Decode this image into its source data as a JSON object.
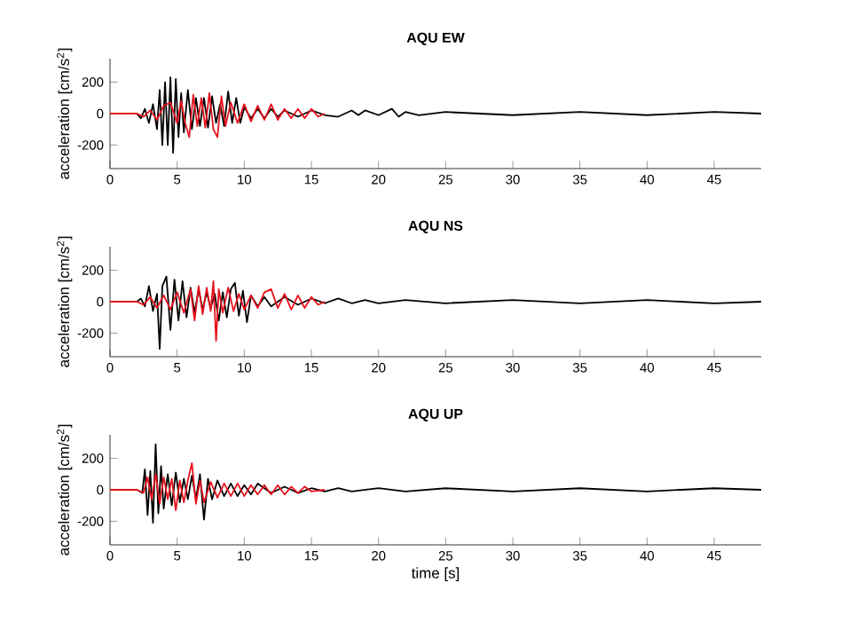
{
  "chart_data": [
    {
      "type": "line",
      "title": "AQU EW",
      "ylabel": "acceleration [cm/s$^{2}$]",
      "xlim": [
        0,
        48.5
      ],
      "ylim": [
        -350,
        350
      ],
      "xticks": [
        0,
        5,
        10,
        15,
        20,
        25,
        30,
        35,
        40,
        45
      ],
      "yticks": [
        -200,
        0,
        200
      ],
      "series": [
        {
          "color": "#000000",
          "x": [
            0,
            2,
            2.3,
            2.6,
            2.9,
            3.2,
            3.5,
            3.7,
            3.9,
            4.1,
            4.3,
            4.5,
            4.7,
            4.9,
            5.1,
            5.3,
            5.5,
            5.8,
            6.1,
            6.4,
            6.7,
            7.0,
            7.3,
            7.6,
            7.9,
            8.2,
            8.5,
            8.8,
            9.1,
            9.4,
            9.7,
            10,
            10.5,
            11,
            11.5,
            12,
            12.5,
            13,
            14,
            15,
            16,
            17,
            18,
            18.5,
            19,
            20,
            21,
            21.5,
            22,
            23,
            25,
            30,
            35,
            40,
            45,
            48.5
          ],
          "values": [
            0,
            0,
            -30,
            30,
            -60,
            60,
            -100,
            150,
            -200,
            200,
            -200,
            230,
            -250,
            220,
            -150,
            130,
            -120,
            150,
            -100,
            100,
            -80,
            100,
            -90,
            110,
            -60,
            60,
            -80,
            140,
            -60,
            100,
            -60,
            40,
            -30,
            30,
            -30,
            30,
            -20,
            20,
            -20,
            20,
            -10,
            -20,
            20,
            -10,
            20,
            -10,
            30,
            -20,
            10,
            -10,
            10,
            -10,
            10,
            -10,
            10,
            0
          ]
        },
        {
          "color": "#e8101c",
          "x": [
            0,
            2,
            2.5,
            3,
            3.5,
            4,
            4.5,
            5,
            5.3,
            5.6,
            5.9,
            6.2,
            6.5,
            6.8,
            7.1,
            7.4,
            7.7,
            8,
            8.3,
            8.6,
            9,
            9.5,
            10,
            10.5,
            11,
            11.5,
            12,
            12.5,
            13,
            13.5,
            14,
            14.5,
            15,
            15.5,
            16
          ],
          "values": [
            0,
            0,
            -20,
            20,
            -40,
            50,
            70,
            -60,
            80,
            -60,
            -150,
            120,
            -80,
            100,
            -90,
            130,
            -100,
            -150,
            110,
            -80,
            70,
            -60,
            60,
            -50,
            50,
            -40,
            60,
            -40,
            30,
            -30,
            30,
            -30,
            30,
            -20,
            0
          ]
        }
      ]
    },
    {
      "type": "line",
      "title": "AQU NS",
      "ylabel": "acceleration [cm/s$^{2}$]",
      "xlim": [
        0,
        48.5
      ],
      "ylim": [
        -350,
        350
      ],
      "xticks": [
        0,
        5,
        10,
        15,
        20,
        25,
        30,
        35,
        40,
        45
      ],
      "yticks": [
        -200,
        0,
        200
      ],
      "series": [
        {
          "color": "#000000",
          "x": [
            0,
            2,
            2.3,
            2.6,
            2.9,
            3.2,
            3.5,
            3.7,
            3.9,
            4.2,
            4.5,
            4.8,
            5.1,
            5.4,
            5.7,
            6,
            6.3,
            6.6,
            6.9,
            7.2,
            7.5,
            7.8,
            8.1,
            8.4,
            8.7,
            9,
            9.3,
            9.6,
            9.9,
            10.2,
            10.5,
            11,
            11.5,
            12,
            13,
            14,
            15,
            16,
            17,
            18,
            19,
            20,
            22,
            25,
            30,
            35,
            40,
            45,
            48.5
          ],
          "values": [
            0,
            0,
            20,
            -30,
            100,
            -60,
            50,
            -300,
            100,
            160,
            -180,
            140,
            -120,
            130,
            -100,
            90,
            -70,
            80,
            -50,
            60,
            -40,
            50,
            -120,
            60,
            -100,
            80,
            120,
            -90,
            70,
            -130,
            40,
            -30,
            30,
            -30,
            30,
            -20,
            20,
            -10,
            20,
            -10,
            10,
            -10,
            10,
            -10,
            10,
            -10,
            10,
            -10,
            0
          ]
        },
        {
          "color": "#e8101c",
          "x": [
            0,
            2,
            2.5,
            3,
            3.5,
            4,
            4.5,
            5,
            5.5,
            6,
            6.3,
            6.6,
            6.9,
            7.2,
            7.5,
            7.7,
            7.9,
            8.1,
            8.4,
            8.8,
            9.2,
            9.6,
            10,
            10.5,
            11,
            11.5,
            12,
            12.5,
            13,
            13.5,
            14,
            14.5,
            15,
            15.5,
            16
          ],
          "values": [
            0,
            0,
            -20,
            30,
            -40,
            40,
            -50,
            60,
            -70,
            80,
            -120,
            100,
            -80,
            90,
            -60,
            130,
            -250,
            80,
            -70,
            90,
            -60,
            50,
            -50,
            40,
            -40,
            60,
            80,
            -40,
            50,
            -50,
            40,
            -40,
            30,
            -20,
            0
          ]
        }
      ]
    },
    {
      "type": "line",
      "title": "AQU UP",
      "xlabel": "time [s]",
      "ylabel": "acceleration [cm/s$^{2}$]",
      "xlim": [
        0,
        48.5
      ],
      "ylim": [
        -350,
        350
      ],
      "xticks": [
        0,
        5,
        10,
        15,
        20,
        25,
        30,
        35,
        40,
        45
      ],
      "yticks": [
        -200,
        0,
        200
      ],
      "series": [
        {
          "color": "#000000",
          "x": [
            0,
            2,
            2.4,
            2.6,
            2.8,
            3.0,
            3.2,
            3.4,
            3.6,
            3.8,
            4,
            4.3,
            4.6,
            4.9,
            5.2,
            5.5,
            5.8,
            6.1,
            6.4,
            6.7,
            7,
            7.3,
            7.6,
            8,
            8.5,
            9,
            9.5,
            10,
            10.5,
            11,
            12,
            13,
            14,
            15,
            16,
            17,
            18,
            20,
            22,
            25,
            30,
            35,
            40,
            45,
            48.5
          ],
          "values": [
            0,
            0,
            -20,
            130,
            -160,
            120,
            -210,
            290,
            -150,
            150,
            -120,
            100,
            -100,
            110,
            -80,
            70,
            -60,
            90,
            -60,
            100,
            -190,
            70,
            -60,
            60,
            -40,
            40,
            -40,
            30,
            -30,
            40,
            -20,
            20,
            -20,
            10,
            -10,
            10,
            -10,
            10,
            -10,
            10,
            -10,
            10,
            -10,
            10,
            0
          ]
        },
        {
          "color": "#e8101c",
          "x": [
            0,
            2,
            2.5,
            2.8,
            3.1,
            3.4,
            3.7,
            4,
            4.3,
            4.6,
            4.9,
            5.2,
            5.5,
            5.8,
            6.1,
            6.4,
            6.7,
            7,
            7.5,
            8,
            8.5,
            9,
            9.5,
            10,
            10.5,
            11,
            11.5,
            12,
            12.5,
            13,
            13.5,
            14,
            14.5,
            15,
            16
          ],
          "values": [
            0,
            0,
            -20,
            80,
            -60,
            100,
            -90,
            80,
            -60,
            70,
            -130,
            60,
            -80,
            60,
            170,
            -90,
            60,
            -80,
            50,
            -50,
            40,
            -40,
            40,
            -40,
            30,
            -30,
            30,
            -30,
            30,
            -30,
            20,
            -20,
            20,
            -10,
            0
          ]
        }
      ]
    }
  ]
}
